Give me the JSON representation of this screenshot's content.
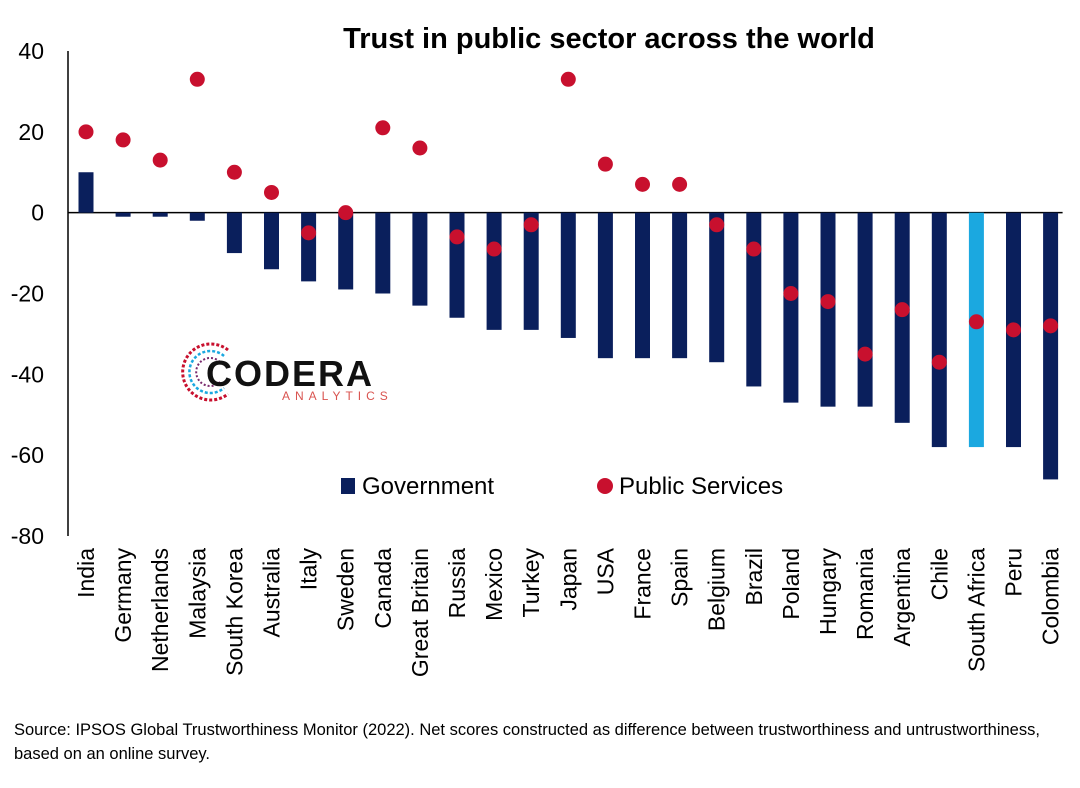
{
  "chart_data": {
    "type": "bar",
    "title": "Trust in public sector across the world",
    "categories": [
      "India",
      "Germany",
      "Netherlands",
      "Malaysia",
      "South Korea",
      "Australia",
      "Italy",
      "Sweden",
      "Canada",
      "Great Britain",
      "Russia",
      "Mexico",
      "Turkey",
      "Japan",
      "USA",
      "France",
      "Spain",
      "Belgium",
      "Brazil",
      "Poland",
      "Hungary",
      "Romania",
      "Argentina",
      "Chile",
      "South Africa",
      "Peru",
      "Colombia"
    ],
    "series": [
      {
        "name": "Government",
        "kind": "bar",
        "color": "#0a1f5c",
        "highlight": {
          "category": "South Africa",
          "color": "#1ba8e0"
        },
        "values": [
          10,
          -1,
          -1,
          -2,
          -10,
          -14,
          -17,
          -19,
          -20,
          -23,
          -26,
          -29,
          -29,
          -31,
          -36,
          -36,
          -36,
          -37,
          -43,
          -47,
          -48,
          -48,
          -52,
          -58,
          -58,
          -58,
          -66
        ]
      },
      {
        "name": "Public Services",
        "kind": "scatter",
        "color": "#c8102e",
        "values": [
          20,
          18,
          13,
          33,
          10,
          5,
          -5,
          0,
          21,
          16,
          -6,
          -9,
          -3,
          33,
          12,
          7,
          7,
          -3,
          -9,
          -20,
          -22,
          -35,
          -24,
          -37,
          -27,
          -29,
          -28
        ]
      }
    ],
    "ylim": [
      -80,
      40
    ],
    "yticks": [
      40,
      20,
      0,
      -20,
      -40,
      -60,
      -80
    ],
    "legend_placement": "inside-lower-center"
  },
  "logo": {
    "name": "CODERA",
    "sub": "ANALYTICS"
  },
  "source": "Source: IPSOS Global Trustworthiness Monitor (2022). Net scores constructed as difference between trustworthiness and untrustworthiness, based on an online survey."
}
